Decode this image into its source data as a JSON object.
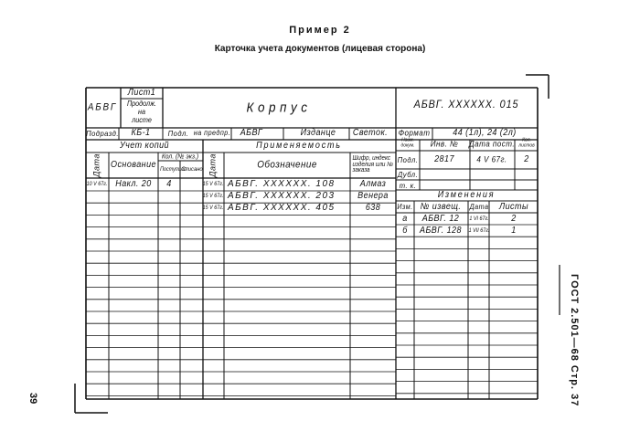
{
  "heading": {
    "example": "Пример 2",
    "caption": "Карточка учета документов (лицевая сторона)"
  },
  "side": {
    "standard": "ГОСТ 2.501—68 Стр. 37",
    "page_number": "39"
  },
  "card": {
    "org_code": "АБВГ",
    "sheet": "Лист1",
    "continued": [
      "Продолж.",
      "на",
      "листе"
    ],
    "name": "Корпус",
    "designation": "АБВГ. XXXXXX. 015",
    "dept_label": "Подразд.",
    "dept": "КБ-1",
    "original_label": "Подл.",
    "at_enterprise": "на предпр.",
    "enterprise": "АБВГ",
    "copies_kind": "Изданце",
    "copy_type": "Светок.",
    "format_label": "Формат",
    "format": "44 (1л), 24 (2л)",
    "copies_accounting": "Учет копий",
    "applicability": "Применяемость",
    "col_date": "Дата",
    "col_basis": "Основание",
    "col_qty": "Кол. (№ экз.)",
    "col_received": "Поступило",
    "col_written_off": "Списано",
    "col_designation": "Обозначение",
    "col_code": "Шифр, индекс изделия или № заказа",
    "col_doc_name": "Наим. докум.",
    "col_inv": "Инв. № ",
    "col_date_rec": "Дата пост.",
    "col_sheets_count": "Кол. листов",
    "doc_rows": [
      {
        "label": "Подл.",
        "inv": "2817",
        "date": "4 V 67г.",
        "sheets": "2"
      },
      {
        "label": "Дубл.",
        "inv": "",
        "date": "",
        "sheets": ""
      },
      {
        "label": "т. к.",
        "inv": "",
        "date": "",
        "sheets": ""
      }
    ],
    "copies_rows": [
      {
        "date": "10 V 67г.",
        "basis": "Накл. 20",
        "received": "4",
        "written_off": ""
      }
    ],
    "applicability_rows": [
      {
        "date": "15 V 67г.",
        "designation": "АБВГ. XXXXXX. 108",
        "code": "Алмаз"
      },
      {
        "date": "15 V 67г.",
        "designation": "АБВГ. XXXXXX. 203",
        "code": "Венера"
      },
      {
        "date": "15 V 67г.",
        "designation": "АБВГ. XXXXXX. 405",
        "code": "638"
      }
    ],
    "changes_title": "Изменения",
    "changes_cols": {
      "change": "Изм.",
      "notice": "№ извещ.",
      "date": "Дата",
      "sheets": "Листы"
    },
    "changes_rows": [
      {
        "change": "а",
        "notice": "АБВГ. 12",
        "date": "1 VI 67г.",
        "sheets": "2"
      },
      {
        "change": "б",
        "notice": "АБВГ. 128",
        "date": "1 VII 67г.",
        "sheets": "1"
      }
    ]
  }
}
